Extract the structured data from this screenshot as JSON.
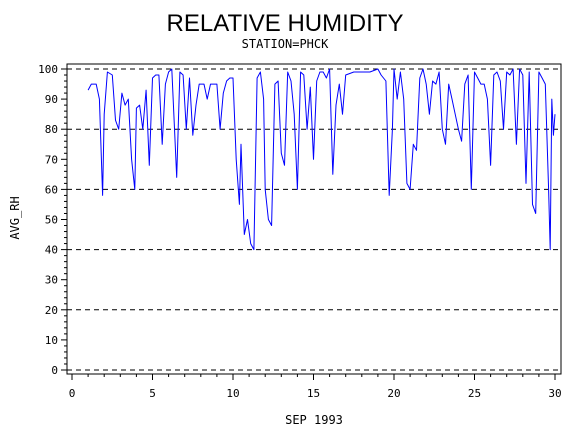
{
  "chart_data": {
    "type": "line",
    "title": "RELATIVE HUMIDITY",
    "subtitle": "STATION=PHCK",
    "xlabel": "SEP 1993",
    "ylabel": "AVG_RH",
    "xlim": [
      0,
      30
    ],
    "ylim": [
      0,
      100
    ],
    "x_ticks": [
      0,
      5,
      10,
      15,
      20,
      25,
      30
    ],
    "y_ticks": [
      0,
      10,
      20,
      30,
      40,
      50,
      60,
      70,
      80,
      90,
      100
    ],
    "grid": "dashed horizontal at 0, 20, 40, 60, 80, 100",
    "line_color": "#0000ff",
    "series": [
      {
        "x": [
          1.0,
          1.2,
          1.5,
          1.7,
          1.9,
          2.0,
          2.2,
          2.5,
          2.7,
          2.9,
          3.1,
          3.3,
          3.5,
          3.7,
          3.9,
          4.0,
          4.2,
          4.4,
          4.6,
          4.8,
          5.0,
          5.2,
          5.4,
          5.6,
          5.8,
          6.0,
          6.2,
          6.5,
          6.7,
          6.9,
          7.1,
          7.3,
          7.5,
          7.7,
          7.9,
          8.0,
          8.2,
          8.4,
          8.6,
          8.8,
          9.0,
          9.2,
          9.4,
          9.6,
          9.8,
          10.0,
          10.2,
          10.4,
          10.5,
          10.7,
          10.9,
          11.1,
          11.3,
          11.5,
          11.7,
          11.9,
          12.0,
          12.2,
          12.4,
          12.6,
          12.8,
          13.0,
          13.2,
          13.4,
          13.6,
          13.8,
          14.0,
          14.2,
          14.4,
          14.6,
          14.8,
          15.0,
          15.2,
          15.4,
          15.6,
          15.8,
          16.0,
          16.2,
          16.4,
          16.6,
          16.8,
          17.0,
          17.5,
          18.0,
          18.5,
          19.0,
          19.2,
          19.5,
          19.7,
          19.9,
          20.0,
          20.2,
          20.4,
          20.6,
          20.8,
          21.0,
          21.2,
          21.4,
          21.6,
          21.8,
          22.0,
          22.2,
          22.4,
          22.6,
          22.8,
          23.0,
          23.2,
          23.4,
          23.6,
          23.8,
          24.0,
          24.2,
          24.4,
          24.6,
          24.8,
          25.0,
          25.2,
          25.4,
          25.6,
          25.8,
          26.0,
          26.2,
          26.4,
          26.6,
          26.8,
          27.0,
          27.2,
          27.4,
          27.6,
          27.8,
          28.0,
          28.2,
          28.4,
          28.6,
          28.8,
          29.0,
          29.2,
          29.4,
          29.6,
          29.7,
          29.8,
          29.9,
          30.0
        ],
        "y": [
          93,
          95,
          95,
          90,
          58,
          85,
          99,
          98,
          83,
          80,
          92,
          88,
          90,
          70,
          60,
          87,
          88,
          80,
          93,
          68,
          97,
          98,
          98,
          75,
          95,
          99,
          100,
          64,
          99,
          98,
          80,
          97,
          78,
          88,
          95,
          95,
          95,
          90,
          95,
          95,
          95,
          80,
          92,
          96,
          97,
          97,
          70,
          55,
          75,
          45,
          50,
          42,
          40,
          97,
          99,
          90,
          60,
          50,
          48,
          95,
          96,
          72,
          68,
          99,
          96,
          85,
          60,
          99,
          98,
          80,
          94,
          70,
          96,
          99,
          99,
          97,
          100,
          65,
          88,
          95,
          85,
          98,
          99,
          99,
          99,
          100,
          98,
          96,
          58,
          80,
          100,
          90,
          99,
          90,
          62,
          60,
          75,
          73,
          97,
          100,
          95,
          85,
          96,
          95,
          99,
          80,
          75,
          95,
          90,
          85,
          80,
          76,
          95,
          98,
          60,
          99,
          97,
          95,
          95,
          90,
          68,
          98,
          99,
          96,
          80,
          99,
          98,
          100,
          75,
          100,
          98,
          62,
          99,
          55,
          52,
          99,
          97,
          95,
          60,
          40,
          90,
          78,
          85
        ]
      }
    ]
  }
}
